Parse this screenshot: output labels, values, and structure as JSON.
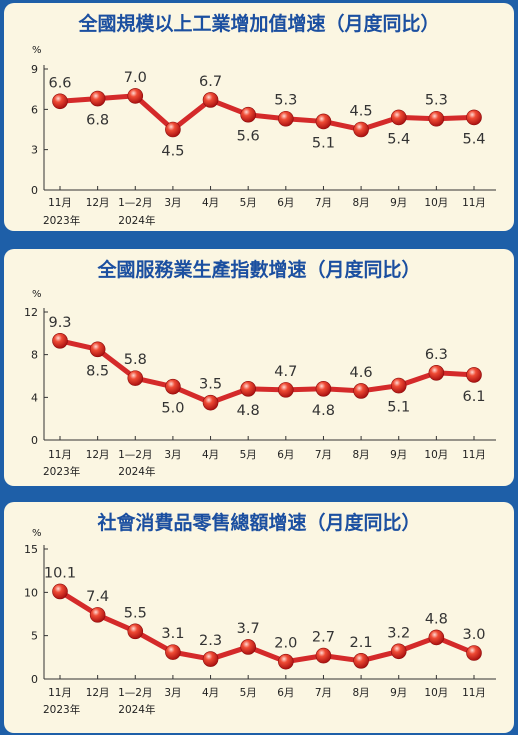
{
  "chart_data": [
    {
      "type": "line",
      "title": "全國規模以上工業增加值增速（月度同比）",
      "ylabel": "%",
      "ylim": [
        0,
        9
      ],
      "yticks": [
        0,
        3,
        6,
        9
      ],
      "categories": [
        "11月",
        "12月",
        "1—2月",
        "3月",
        "4月",
        "5月",
        "6月",
        "7月",
        "8月",
        "9月",
        "10月",
        "11月"
      ],
      "year_labels": [
        {
          "index": 0,
          "label": "2023年"
        },
        {
          "index": 2,
          "label": "2024年"
        }
      ],
      "values": [
        6.6,
        6.8,
        7.0,
        4.5,
        6.7,
        5.6,
        5.3,
        5.1,
        4.5,
        5.4,
        5.3,
        5.4
      ],
      "value_labels": [
        "6.6",
        "6.8",
        "7.0",
        "4.5",
        "6.7",
        "5.6",
        "5.3",
        "5.1",
        "4.5",
        "5.4",
        "5.3",
        "5.4"
      ],
      "label_pos": [
        "above",
        "below",
        "above",
        "below",
        "above",
        "below",
        "above",
        "below",
        "above",
        "below",
        "above",
        "below"
      ],
      "color": "#d42a2a"
    },
    {
      "type": "line",
      "title": "全國服務業生產指數增速（月度同比）",
      "ylabel": "%",
      "ylim": [
        0,
        12
      ],
      "yticks": [
        0,
        4,
        8,
        12
      ],
      "categories": [
        "11月",
        "12月",
        "1—2月",
        "3月",
        "4月",
        "5月",
        "6月",
        "7月",
        "8月",
        "9月",
        "10月",
        "11月"
      ],
      "year_labels": [
        {
          "index": 0,
          "label": "2023年"
        },
        {
          "index": 2,
          "label": "2024年"
        }
      ],
      "values": [
        9.3,
        8.5,
        5.8,
        5.0,
        3.5,
        4.8,
        4.7,
        4.8,
        4.6,
        5.1,
        6.3,
        6.1
      ],
      "value_labels": [
        "9.3",
        "8.5",
        "5.8",
        "5.0",
        "3.5",
        "4.8",
        "4.7",
        "4.8",
        "4.6",
        "5.1",
        "6.3",
        "6.1"
      ],
      "label_pos": [
        "above",
        "below",
        "above",
        "below",
        "above",
        "below",
        "above",
        "below",
        "above",
        "below",
        "above",
        "below"
      ],
      "color": "#d42a2a"
    },
    {
      "type": "line",
      "title": "社會消費品零售總額增速（月度同比）",
      "ylabel": "%",
      "ylim": [
        0,
        15
      ],
      "yticks": [
        0,
        5,
        10,
        15
      ],
      "categories": [
        "11月",
        "12月",
        "1—2月",
        "3月",
        "4月",
        "5月",
        "6月",
        "7月",
        "8月",
        "9月",
        "10月",
        "11月"
      ],
      "year_labels": [
        {
          "index": 0,
          "label": "2023年"
        },
        {
          "index": 2,
          "label": "2024年"
        }
      ],
      "values": [
        10.1,
        7.4,
        5.5,
        3.1,
        2.3,
        3.7,
        2.0,
        2.7,
        2.1,
        3.2,
        4.8,
        3.0
      ],
      "value_labels": [
        "10.1",
        "7.4",
        "5.5",
        "3.1",
        "2.3",
        "3.7",
        "2.0",
        "2.7",
        "2.1",
        "3.2",
        "4.8",
        "3.0"
      ],
      "label_pos": [
        "above",
        "above",
        "above",
        "above",
        "above",
        "above",
        "above",
        "above",
        "above",
        "above",
        "above",
        "above"
      ],
      "color": "#d42a2a"
    }
  ]
}
